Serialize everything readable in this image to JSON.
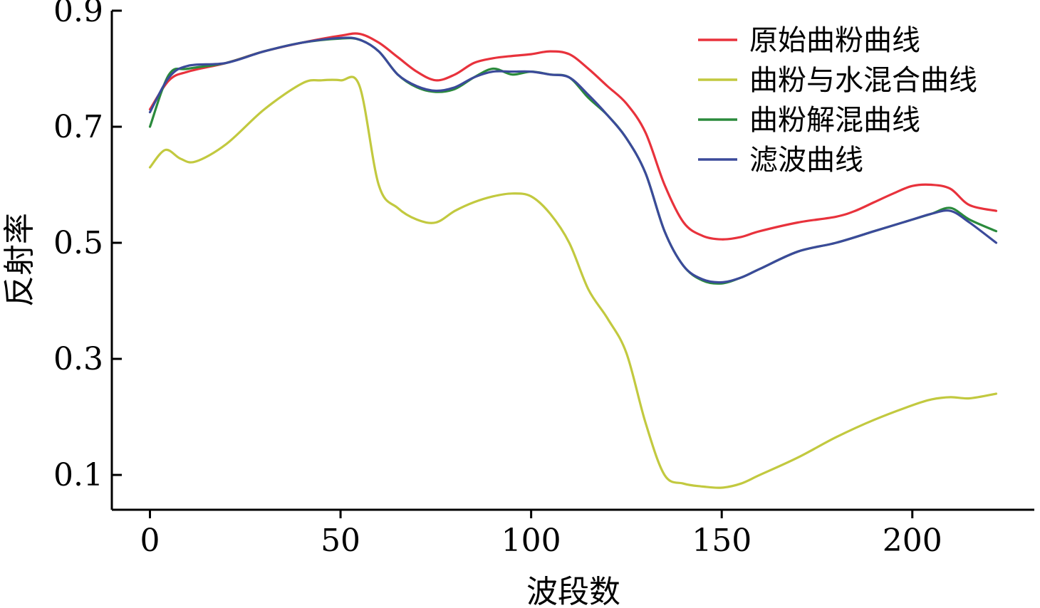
{
  "chart_data": {
    "type": "line",
    "xlabel": "波段数",
    "ylabel": "反射率",
    "xlim": [
      -10,
      232
    ],
    "ylim": [
      0.04,
      0.9
    ],
    "xticks": [
      0,
      50,
      100,
      150,
      200
    ],
    "yticks": [
      0.1,
      0.3,
      0.5,
      0.7,
      0.9
    ],
    "xtick_labels": [
      "0",
      "50",
      "100",
      "150",
      "200"
    ],
    "ytick_labels": [
      "0.1",
      "0.3",
      "0.5",
      "0.7",
      "0.9"
    ],
    "grid": false,
    "legend_position": "top-right",
    "series": [
      {
        "name": "原始曲粉曲线",
        "color": "#e8323c",
        "x": [
          0,
          5,
          10,
          20,
          30,
          40,
          50,
          55,
          60,
          65,
          70,
          75,
          80,
          85,
          90,
          95,
          100,
          105,
          110,
          115,
          120,
          125,
          130,
          135,
          140,
          145,
          150,
          155,
          160,
          170,
          180,
          185,
          190,
          195,
          200,
          205,
          210,
          215,
          222
        ],
        "y": [
          0.73,
          0.78,
          0.795,
          0.81,
          0.83,
          0.845,
          0.857,
          0.86,
          0.845,
          0.82,
          0.795,
          0.78,
          0.79,
          0.81,
          0.818,
          0.822,
          0.825,
          0.83,
          0.825,
          0.8,
          0.77,
          0.74,
          0.69,
          0.6,
          0.535,
          0.512,
          0.506,
          0.51,
          0.52,
          0.535,
          0.545,
          0.555,
          0.57,
          0.585,
          0.598,
          0.6,
          0.593,
          0.565,
          0.555
        ]
      },
      {
        "name": "曲粉与水混合曲线",
        "color": "#c2c93f",
        "x": [
          0,
          4,
          8,
          12,
          20,
          30,
          40,
          45,
          50,
          55,
          60,
          65,
          70,
          75,
          80,
          85,
          90,
          95,
          100,
          105,
          110,
          115,
          120,
          125,
          130,
          135,
          140,
          145,
          150,
          155,
          160,
          170,
          180,
          190,
          200,
          205,
          210,
          215,
          222
        ],
        "y": [
          0.63,
          0.66,
          0.645,
          0.64,
          0.67,
          0.73,
          0.775,
          0.78,
          0.78,
          0.77,
          0.6,
          0.56,
          0.54,
          0.535,
          0.555,
          0.57,
          0.58,
          0.585,
          0.58,
          0.55,
          0.5,
          0.42,
          0.37,
          0.31,
          0.19,
          0.1,
          0.085,
          0.08,
          0.078,
          0.085,
          0.1,
          0.13,
          0.165,
          0.195,
          0.22,
          0.23,
          0.234,
          0.232,
          0.24
        ]
      },
      {
        "name": "曲粉解混曲线",
        "color": "#2a8a3c",
        "x": [
          0,
          5,
          10,
          20,
          30,
          40,
          50,
          55,
          60,
          65,
          70,
          75,
          80,
          85,
          90,
          95,
          100,
          105,
          110,
          115,
          120,
          125,
          130,
          135,
          140,
          145,
          150,
          155,
          160,
          170,
          180,
          190,
          200,
          205,
          210,
          215,
          222
        ],
        "y": [
          0.7,
          0.79,
          0.8,
          0.81,
          0.83,
          0.845,
          0.852,
          0.85,
          0.83,
          0.79,
          0.768,
          0.76,
          0.765,
          0.785,
          0.8,
          0.79,
          0.795,
          0.79,
          0.785,
          0.75,
          0.72,
          0.68,
          0.62,
          0.52,
          0.46,
          0.435,
          0.43,
          0.44,
          0.455,
          0.485,
          0.5,
          0.52,
          0.54,
          0.55,
          0.56,
          0.54,
          0.52
        ]
      },
      {
        "name": "滤波曲线",
        "color": "#3b4a9a",
        "x": [
          0,
          5,
          10,
          20,
          30,
          40,
          50,
          55,
          60,
          65,
          70,
          75,
          80,
          85,
          90,
          95,
          100,
          105,
          110,
          115,
          120,
          125,
          130,
          135,
          140,
          145,
          150,
          155,
          160,
          170,
          180,
          190,
          200,
          205,
          210,
          215,
          222
        ],
        "y": [
          0.725,
          0.785,
          0.805,
          0.81,
          0.83,
          0.845,
          0.853,
          0.85,
          0.83,
          0.79,
          0.77,
          0.762,
          0.768,
          0.785,
          0.795,
          0.795,
          0.795,
          0.79,
          0.785,
          0.755,
          0.72,
          0.68,
          0.62,
          0.52,
          0.46,
          0.437,
          0.432,
          0.44,
          0.455,
          0.485,
          0.5,
          0.52,
          0.54,
          0.55,
          0.555,
          0.535,
          0.5
        ]
      }
    ]
  }
}
